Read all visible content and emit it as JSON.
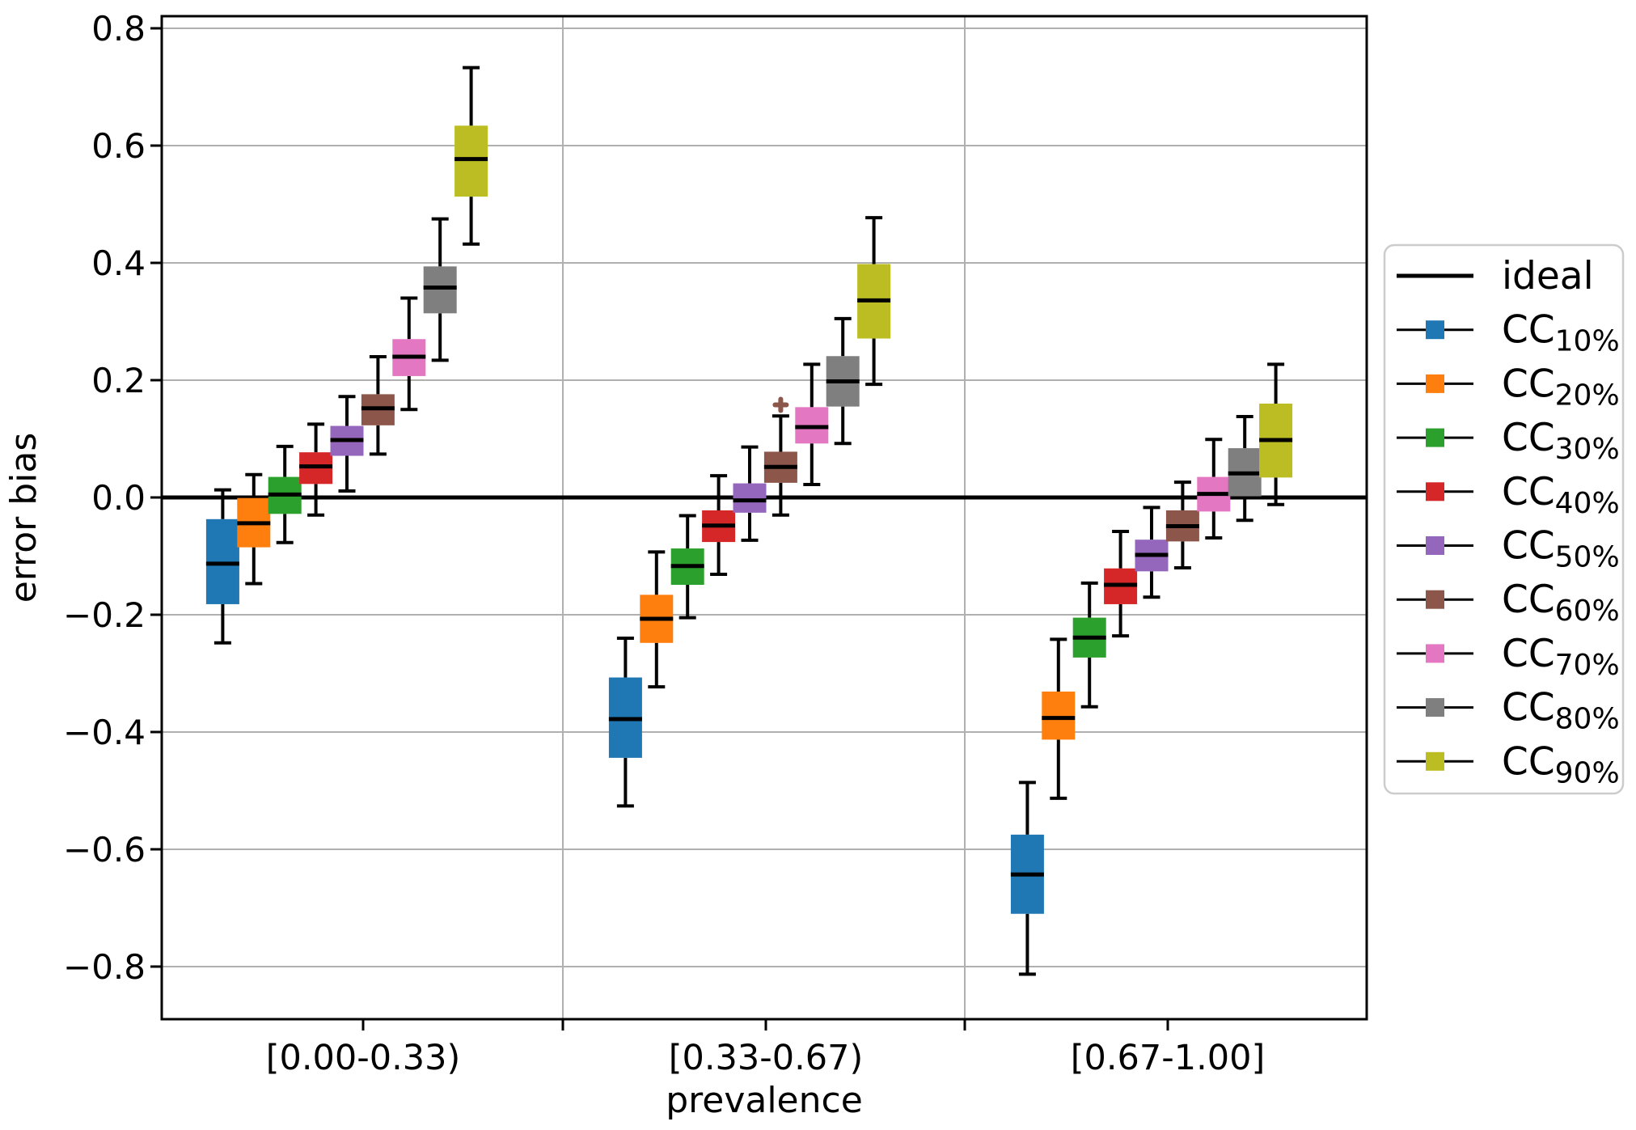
{
  "figure": {
    "background": "#ffffff",
    "frame_color": "#000000",
    "grid_color": "#b0b0b0"
  },
  "chart_data": {
    "type": "boxplot",
    "xlabel": "prevalence",
    "ylabel": "error bias",
    "groups": [
      "[0.00-0.33)",
      "[0.33-0.67)",
      "[0.67-1.00]"
    ],
    "ylim": [
      -0.89,
      0.82
    ],
    "grid": "horizontal gridlines at y ticks, vertical separators between prevalence bins",
    "legend_position": "right outside",
    "yticks": [
      {
        "v": 0.8,
        "label": "0.8"
      },
      {
        "v": 0.6,
        "label": "0.6"
      },
      {
        "v": 0.4,
        "label": "0.4"
      },
      {
        "v": 0.2,
        "label": "0.2"
      },
      {
        "v": 0.0,
        "label": "0.0"
      },
      {
        "v": -0.2,
        "label": "−0.2"
      },
      {
        "v": -0.4,
        "label": "−0.4"
      },
      {
        "v": -0.6,
        "label": "−0.6"
      },
      {
        "v": -0.8,
        "label": "−0.8"
      }
    ],
    "ideal_line": {
      "label": "ideal",
      "y": 0.0,
      "color": "#000000"
    },
    "series": [
      {
        "name": "CC_10%",
        "legend_main": "CC",
        "legend_sub": "10%",
        "color": "#1f77b4",
        "boxes": [
          {
            "whislo": -0.248,
            "q1": -0.182,
            "med": -0.113,
            "q3": -0.037,
            "whishi": 0.013,
            "fliers": []
          },
          {
            "whislo": -0.526,
            "q1": -0.444,
            "med": -0.378,
            "q3": -0.307,
            "whishi": -0.24,
            "fliers": []
          },
          {
            "whislo": -0.813,
            "q1": -0.71,
            "med": -0.643,
            "q3": -0.575,
            "whishi": -0.486,
            "fliers": []
          }
        ]
      },
      {
        "name": "CC_20%",
        "legend_main": "CC",
        "legend_sub": "20%",
        "color": "#ff7f0e",
        "boxes": [
          {
            "whislo": -0.147,
            "q1": -0.085,
            "med": -0.044,
            "q3": -0.001,
            "whishi": 0.039,
            "fliers": []
          },
          {
            "whislo": -0.323,
            "q1": -0.248,
            "med": -0.207,
            "q3": -0.166,
            "whishi": -0.093,
            "fliers": []
          },
          {
            "whislo": -0.513,
            "q1": -0.413,
            "med": -0.376,
            "q3": -0.331,
            "whishi": -0.242,
            "fliers": []
          }
        ]
      },
      {
        "name": "CC_30%",
        "legend_main": "CC",
        "legend_sub": "30%",
        "color": "#2ca02c",
        "boxes": [
          {
            "whislo": -0.077,
            "q1": -0.028,
            "med": 0.005,
            "q3": 0.035,
            "whishi": 0.087,
            "fliers": []
          },
          {
            "whislo": -0.205,
            "q1": -0.149,
            "med": -0.117,
            "q3": -0.087,
            "whishi": -0.031,
            "fliers": []
          },
          {
            "whislo": -0.357,
            "q1": -0.273,
            "med": -0.239,
            "q3": -0.205,
            "whishi": -0.146,
            "fliers": []
          }
        ]
      },
      {
        "name": "CC_40%",
        "legend_main": "CC",
        "legend_sub": "40%",
        "color": "#d62728",
        "boxes": [
          {
            "whislo": -0.03,
            "q1": 0.023,
            "med": 0.053,
            "q3": 0.077,
            "whishi": 0.125,
            "fliers": []
          },
          {
            "whislo": -0.131,
            "q1": -0.076,
            "med": -0.048,
            "q3": -0.022,
            "whishi": 0.037,
            "fliers": []
          },
          {
            "whislo": -0.236,
            "q1": -0.182,
            "med": -0.149,
            "q3": -0.121,
            "whishi": -0.058,
            "fliers": []
          }
        ]
      },
      {
        "name": "CC_50%",
        "legend_main": "CC",
        "legend_sub": "50%",
        "color": "#9467bd",
        "boxes": [
          {
            "whislo": 0.011,
            "q1": 0.071,
            "med": 0.098,
            "q3": 0.122,
            "whishi": 0.172,
            "fliers": []
          },
          {
            "whislo": -0.073,
            "q1": -0.026,
            "med": -0.005,
            "q3": 0.024,
            "whishi": 0.086,
            "fliers": []
          },
          {
            "whislo": -0.17,
            "q1": -0.126,
            "med": -0.098,
            "q3": -0.072,
            "whishi": -0.017,
            "fliers": []
          }
        ]
      },
      {
        "name": "CC_60%",
        "legend_main": "CC",
        "legend_sub": "60%",
        "color": "#8c564b",
        "boxes": [
          {
            "whislo": 0.074,
            "q1": 0.123,
            "med": 0.152,
            "q3": 0.176,
            "whishi": 0.24,
            "fliers": []
          },
          {
            "whislo": -0.03,
            "q1": 0.025,
            "med": 0.052,
            "q3": 0.078,
            "whishi": 0.139,
            "fliers": [
              0.158
            ]
          },
          {
            "whislo": -0.12,
            "q1": -0.075,
            "med": -0.049,
            "q3": -0.022,
            "whishi": 0.026,
            "fliers": []
          }
        ]
      },
      {
        "name": "CC_70%",
        "legend_main": "CC",
        "legend_sub": "70%",
        "color": "#e377c2",
        "boxes": [
          {
            "whislo": 0.15,
            "q1": 0.207,
            "med": 0.24,
            "q3": 0.27,
            "whishi": 0.34,
            "fliers": []
          },
          {
            "whislo": 0.022,
            "q1": 0.092,
            "med": 0.12,
            "q3": 0.154,
            "whishi": 0.227,
            "fliers": []
          },
          {
            "whislo": -0.069,
            "q1": -0.024,
            "med": 0.006,
            "q3": 0.035,
            "whishi": 0.099,
            "fliers": []
          }
        ]
      },
      {
        "name": "CC_80%",
        "legend_main": "CC",
        "legend_sub": "80%",
        "color": "#7f7f7f",
        "boxes": [
          {
            "whislo": 0.234,
            "q1": 0.314,
            "med": 0.358,
            "q3": 0.394,
            "whishi": 0.475,
            "fliers": []
          },
          {
            "whislo": 0.092,
            "q1": 0.155,
            "med": 0.198,
            "q3": 0.241,
            "whishi": 0.305,
            "fliers": []
          },
          {
            "whislo": -0.039,
            "q1": 0.002,
            "med": 0.041,
            "q3": 0.084,
            "whishi": 0.138,
            "fliers": []
          }
        ]
      },
      {
        "name": "CC_90%",
        "legend_main": "CC",
        "legend_sub": "90%",
        "color": "#bcbd22",
        "boxes": [
          {
            "whislo": 0.432,
            "q1": 0.513,
            "med": 0.577,
            "q3": 0.634,
            "whishi": 0.733,
            "fliers": []
          },
          {
            "whislo": 0.193,
            "q1": 0.271,
            "med": 0.336,
            "q3": 0.398,
            "whishi": 0.477,
            "fliers": []
          },
          {
            "whislo": -0.012,
            "q1": 0.034,
            "med": 0.098,
            "q3": 0.16,
            "whishi": 0.227,
            "fliers": []
          }
        ]
      }
    ]
  }
}
